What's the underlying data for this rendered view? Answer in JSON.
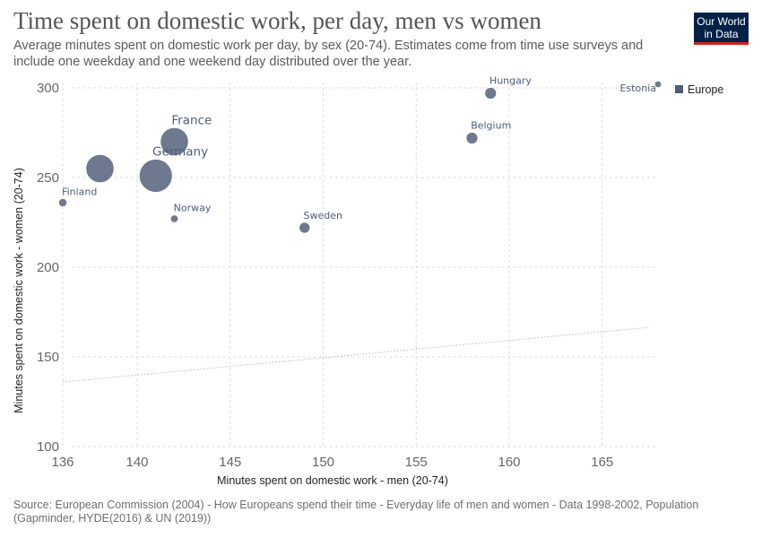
{
  "header": {
    "title": "Time spent on domestic work, per day, men vs women",
    "subtitle": "Average minutes spent on domestic work per day, by sex (20-74). Estimates come from time use surveys and include one weekday and one weekend day distributed over the year.",
    "logo_line1": "Our World",
    "logo_line2": "in Data"
  },
  "footer": {
    "source": "Source: European Commission (2004) - How Europeans spend their time - Everyday life of men and women - Data 1998-2002, Population (Gapminder, HYDE(2016) & UN (2019))"
  },
  "colors": {
    "series": "#4e5c76",
    "grid": "#dddddd",
    "reference_line": "#bbbbbb"
  },
  "chart_data": {
    "type": "scatter",
    "title": "Time spent on domestic work, per day, men vs women",
    "xlabel": "Minutes spent on domestic work - men (20-74)",
    "ylabel": "Minutes spent on domestic work - women (20-74)",
    "xlim": [
      136,
      168
    ],
    "ylim": [
      100,
      300
    ],
    "xticks": [
      136,
      140,
      145,
      150,
      155,
      160,
      165
    ],
    "yticks": [
      100,
      150,
      200,
      250,
      300
    ],
    "grid": true,
    "legend_position": "top-right",
    "legend": [
      "Europe"
    ],
    "size_variable": "Population",
    "reference_line": "y = x",
    "points": [
      {
        "label": "",
        "x": 138,
        "y": 255,
        "population": 59000000
      },
      {
        "label": "France",
        "x": 142,
        "y": 270,
        "population": 59000000
      },
      {
        "label": "Germany",
        "x": 141,
        "y": 251,
        "population": 82000000
      },
      {
        "label": "Finland",
        "x": 136,
        "y": 236,
        "population": 5200000
      },
      {
        "label": "Norway",
        "x": 142,
        "y": 227,
        "population": 4500000
      },
      {
        "label": "Sweden",
        "x": 149,
        "y": 222,
        "population": 8900000
      },
      {
        "label": "Belgium",
        "x": 158,
        "y": 272,
        "population": 10300000
      },
      {
        "label": "Hungary",
        "x": 159,
        "y": 297,
        "population": 10200000
      },
      {
        "label": "Estonia",
        "x": 168,
        "y": 302,
        "population": 1400000
      }
    ]
  }
}
